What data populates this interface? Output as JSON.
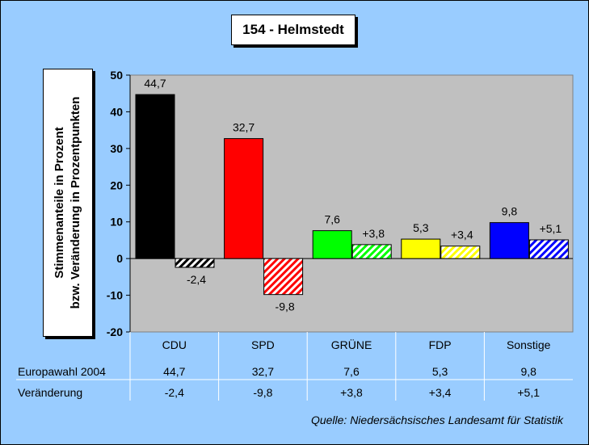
{
  "chart_data": {
    "type": "bar",
    "title": "154 - Helmstedt",
    "ylabel": [
      "Stimmenanteile in Prozent",
      "bzw. Veränderung in Prozentpunkten"
    ],
    "ylim": [
      -20,
      50
    ],
    "yticks": [
      "-20",
      "-10",
      "0",
      "10",
      "20",
      "30",
      "40",
      "50"
    ],
    "categories": [
      "CDU",
      "SPD",
      "GRÜNE",
      "FDP",
      "Sonstige"
    ],
    "colors": [
      "#000000",
      "#ff0000",
      "#00ff00",
      "#ffff00",
      "#0000ff"
    ],
    "series": [
      {
        "name": "Europawahl 2004",
        "values": [
          44.7,
          32.7,
          7.6,
          5.3,
          9.8
        ],
        "labels": [
          "44,7",
          "32,7",
          "7,6",
          "5,3",
          "9,8"
        ],
        "style": "solid"
      },
      {
        "name": "Veränderung",
        "values": [
          -2.4,
          -9.8,
          3.8,
          3.4,
          5.1
        ],
        "labels": [
          "-2,4",
          "-9,8",
          "+3,8",
          "+3,4",
          "+5,1"
        ],
        "style": "hatched"
      }
    ],
    "grid": false,
    "source": "Quelle: Niedersächsisches Landesamt für Statistik"
  }
}
